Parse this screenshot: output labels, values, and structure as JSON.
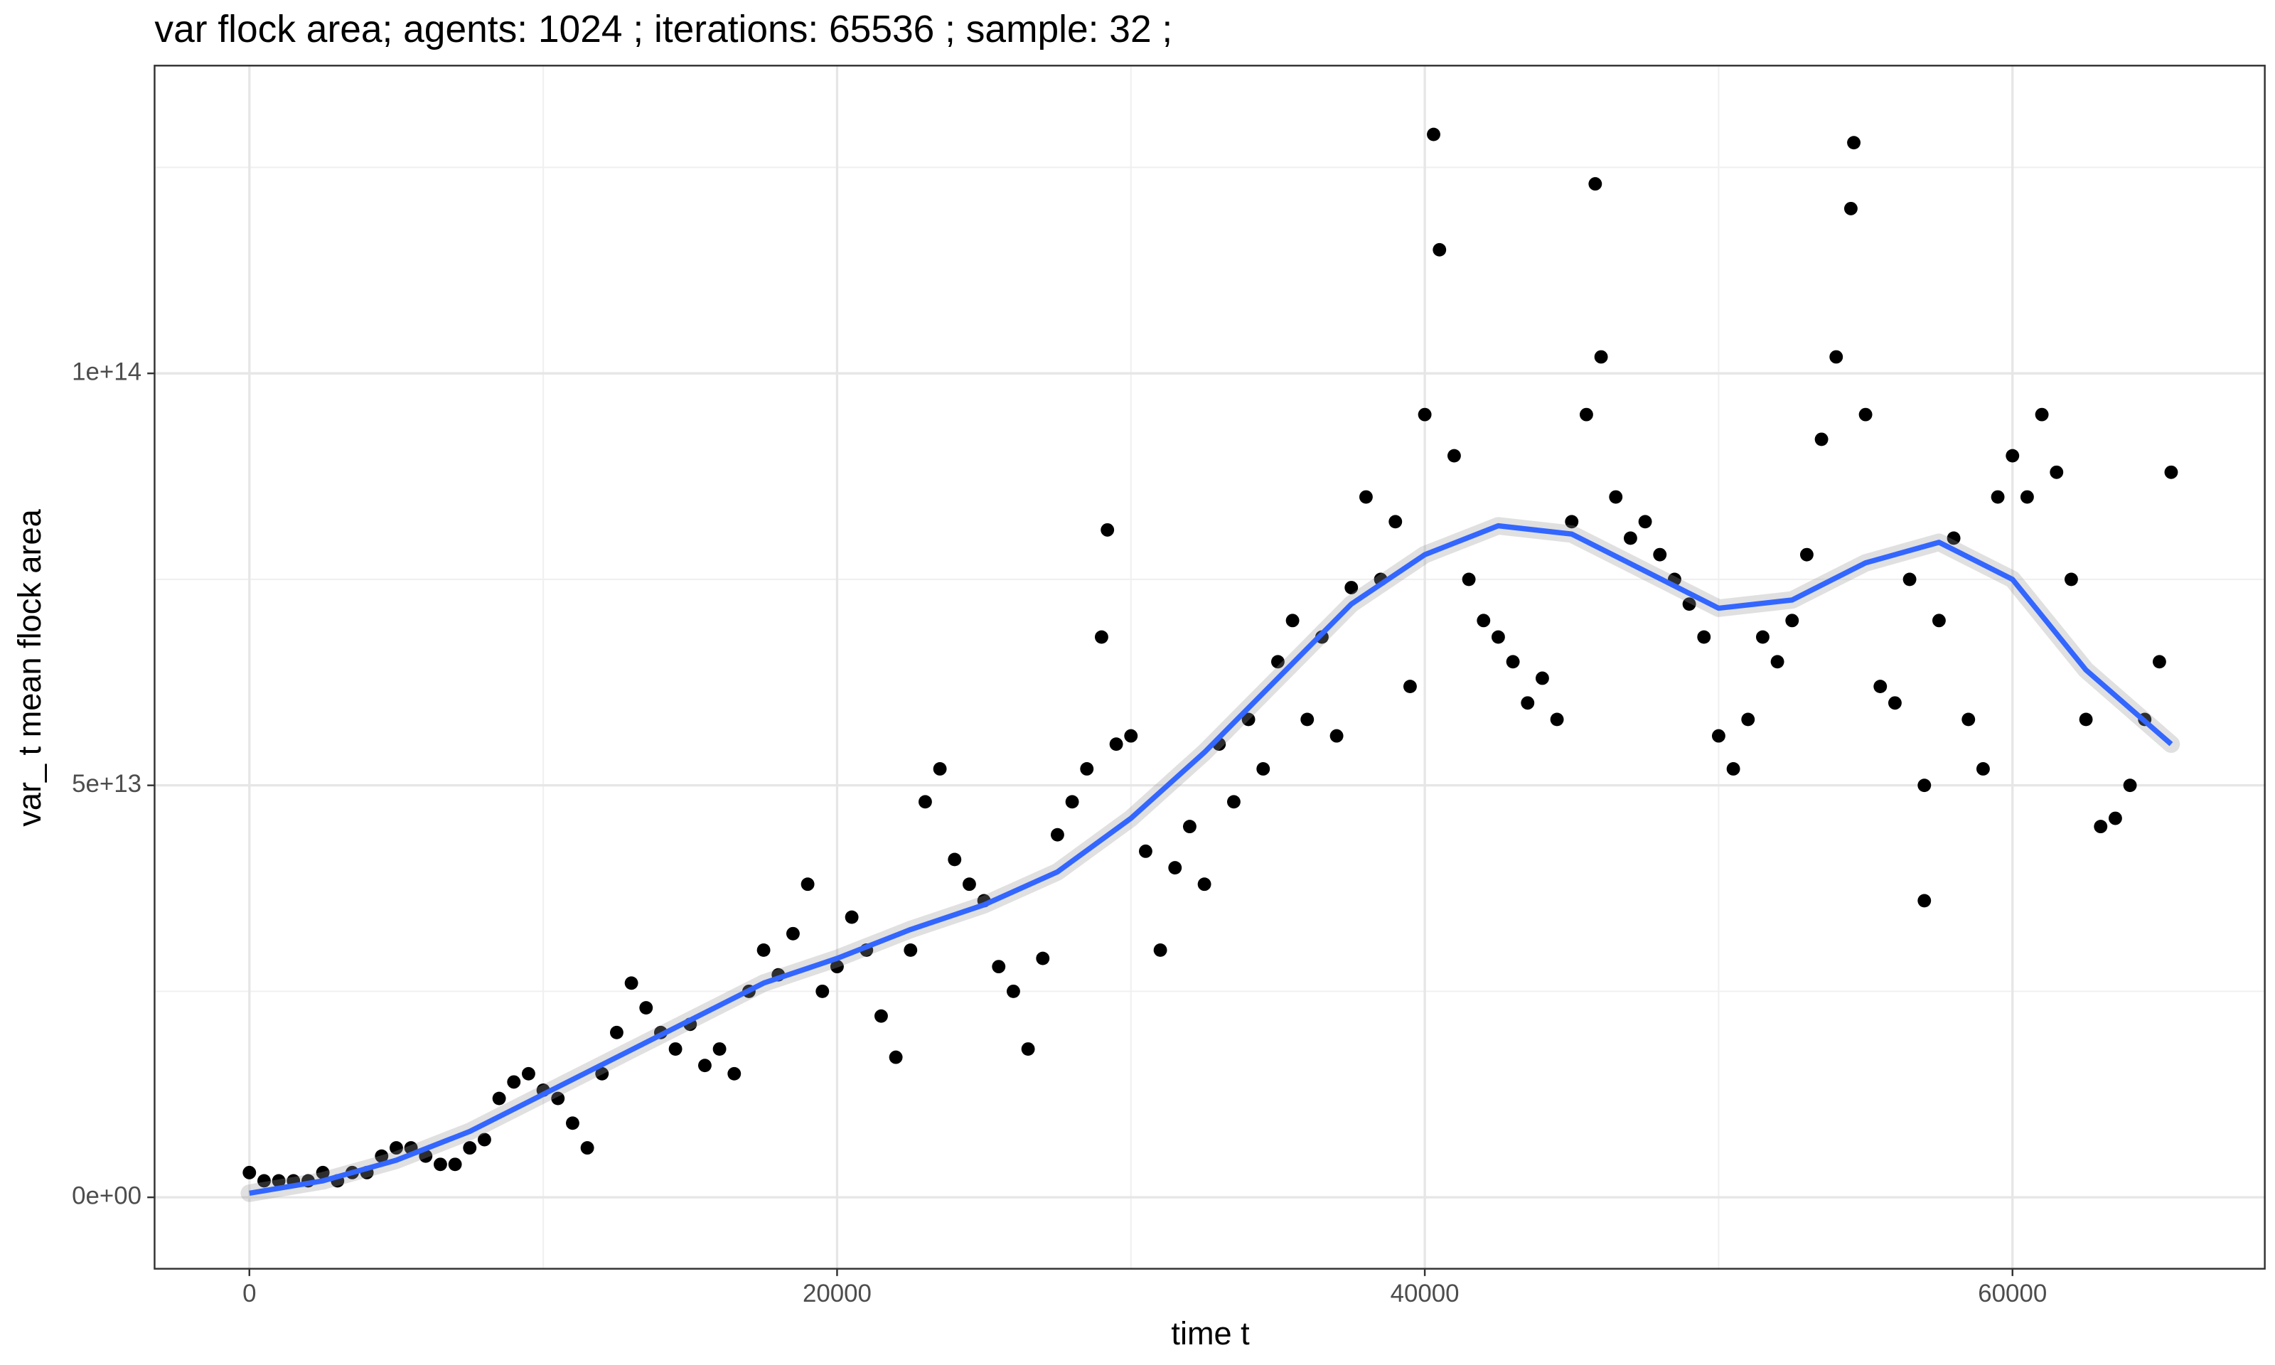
{
  "chart_data": {
    "type": "scatter",
    "title": "var flock area; agents: 1024 ; iterations: 65536 ; sample: 32 ;",
    "x_label": "time t",
    "y_label": "var_ t mean flock area",
    "xlim": [
      -3226,
      68586
    ],
    "ylim": [
      -8670000000000.0,
      137350000000000.0
    ],
    "xticks": [
      0,
      20000,
      40000,
      60000
    ],
    "yticks": [
      {
        "value": 0,
        "label": "0e+00"
      },
      {
        "value": 50000000000000.0,
        "label": "5e+13"
      },
      {
        "value": 100000000000000.0,
        "label": "1e+14"
      }
    ],
    "minor_xticks": [
      10000,
      30000,
      50000
    ],
    "minor_yticks": [
      25000000000000.0,
      75000000000000.0,
      125000000000000.0
    ],
    "grid": true,
    "series": [
      {
        "color": "#000000",
        "kind": "points",
        "x": [
          0,
          500,
          1000,
          1500,
          2000,
          2500,
          3000,
          3500,
          4000,
          4500,
          5000,
          5500,
          6000,
          6500,
          7000,
          7500,
          8000,
          8500,
          9000,
          9500,
          10000,
          10500,
          11000,
          11500,
          12000,
          12500,
          13000,
          13500,
          14000,
          14500,
          15000,
          15500,
          16000,
          16500,
          17000,
          17500,
          18000,
          18500,
          19000,
          19500,
          20000,
          20500,
          21000,
          21500,
          22000,
          22500,
          23000,
          23500,
          24000,
          24500,
          25000,
          25500,
          26000,
          26500,
          27000,
          27500,
          28000,
          28500,
          29000,
          29500,
          30000,
          30500,
          31000,
          31500,
          32000,
          32500,
          33000,
          33500,
          34000,
          34500,
          35000,
          35500,
          36000,
          36500,
          37000,
          37500,
          38000,
          38500,
          39000,
          39500,
          40000,
          40500,
          41000,
          41500,
          42000,
          42500,
          43000,
          43500,
          44000,
          44500,
          45000,
          45500,
          46000,
          46500,
          47000,
          47500,
          48000,
          48500,
          49000,
          49500,
          50000,
          50500,
          51000,
          51500,
          52000,
          52500,
          53000,
          53500,
          54000,
          54500,
          55000,
          55500,
          56000,
          56500,
          57000,
          57500,
          58000,
          58500,
          59000,
          59500,
          60000,
          60500,
          61000,
          61500,
          62000,
          62500,
          63000,
          63500,
          64000,
          64500,
          65000,
          65400,
          40300,
          45800,
          54600,
          57000,
          29200
        ],
        "values": [
          3000000000000.0,
          2000000000000.0,
          2000000000000.0,
          2000000000000.0,
          2000000000000.0,
          3000000000000.0,
          2000000000000.0,
          3000000000000.0,
          3000000000000.0,
          5000000000000.0,
          6000000000000.0,
          6000000000000.0,
          5000000000000.0,
          4000000000000.0,
          4000000000000.0,
          6000000000000.0,
          7000000000000.0,
          12000000000000.0,
          14000000000000.0,
          15000000000000.0,
          13000000000000.0,
          12000000000000.0,
          9000000000000.0,
          6000000000000.0,
          15000000000000.0,
          20000000000000.0,
          26000000000000.0,
          23000000000000.0,
          20000000000000.0,
          18000000000000.0,
          21000000000000.0,
          16000000000000.0,
          18000000000000.0,
          15000000000000.0,
          25000000000000.0,
          30000000000000.0,
          27000000000000.0,
          32000000000000.0,
          38000000000000.0,
          25000000000000.0,
          28000000000000.0,
          34000000000000.0,
          30000000000000.0,
          22000000000000.0,
          17000000000000.0,
          30000000000000.0,
          48000000000000.0,
          52000000000000.0,
          41000000000000.0,
          38000000000000.0,
          36000000000000.0,
          28000000000000.0,
          25000000000000.0,
          18000000000000.0,
          29000000000000.0,
          44000000000000.0,
          48000000000000.0,
          52000000000000.0,
          68000000000000.0,
          55000000000000.0,
          56000000000000.0,
          42000000000000.0,
          30000000000000.0,
          40000000000000.0,
          45000000000000.0,
          38000000000000.0,
          55000000000000.0,
          48000000000000.0,
          58000000000000.0,
          52000000000000.0,
          65000000000000.0,
          70000000000000.0,
          58000000000000.0,
          68000000000000.0,
          56000000000000.0,
          74000000000000.0,
          85000000000000.0,
          75000000000000.0,
          82000000000000.0,
          62000000000000.0,
          95000000000000.0,
          115000000000000.0,
          90000000000000.0,
          75000000000000.0,
          70000000000000.0,
          68000000000000.0,
          65000000000000.0,
          60000000000000.0,
          63000000000000.0,
          58000000000000.0,
          82000000000000.0,
          95000000000000.0,
          102000000000000.0,
          85000000000000.0,
          80000000000000.0,
          82000000000000.0,
          78000000000000.0,
          75000000000000.0,
          72000000000000.0,
          68000000000000.0,
          56000000000000.0,
          52000000000000.0,
          58000000000000.0,
          68000000000000.0,
          65000000000000.0,
          70000000000000.0,
          78000000000000.0,
          92000000000000.0,
          102000000000000.0,
          120000000000000.0,
          95000000000000.0,
          62000000000000.0,
          60000000000000.0,
          75000000000000.0,
          50000000000000.0,
          70000000000000.0,
          80000000000000.0,
          58000000000000.0,
          52000000000000.0,
          85000000000000.0,
          90000000000000.0,
          85000000000000.0,
          95000000000000.0,
          88000000000000.0,
          75000000000000.0,
          58000000000000.0,
          45000000000000.0,
          46000000000000.0,
          50000000000000.0,
          58000000000000.0,
          65000000000000.0,
          88000000000000.0,
          129000000000000.0,
          123000000000000.0,
          128000000000000.0,
          36000000000000.0,
          81000000000000.0
        ]
      },
      {
        "color": "#3366ff",
        "kind": "line",
        "x": [
          0,
          2500,
          5000,
          7500,
          10000,
          12500,
          15000,
          17500,
          20000,
          22500,
          25000,
          27500,
          30000,
          32500,
          35000,
          37500,
          40000,
          42500,
          45000,
          47500,
          50000,
          52500,
          55000,
          57500,
          60000,
          62500,
          65400
        ],
        "values": [
          500000000000.0,
          2000000000000.0,
          4500000000000.0,
          8000000000000.0,
          12500000000000.0,
          17000000000000.0,
          21500000000000.0,
          26000000000000.0,
          29000000000000.0,
          32500000000000.0,
          35500000000000.0,
          39500000000000.0,
          46000000000000.0,
          54000000000000.0,
          63000000000000.0,
          72000000000000.0,
          78000000000000.0,
          81500000000000.0,
          80500000000000.0,
          76000000000000.0,
          71500000000000.0,
          72500000000000.0,
          77000000000000.0,
          79500000000000.0,
          75000000000000.0,
          64000000000000.0,
          55000000000000.0
        ]
      }
    ]
  }
}
